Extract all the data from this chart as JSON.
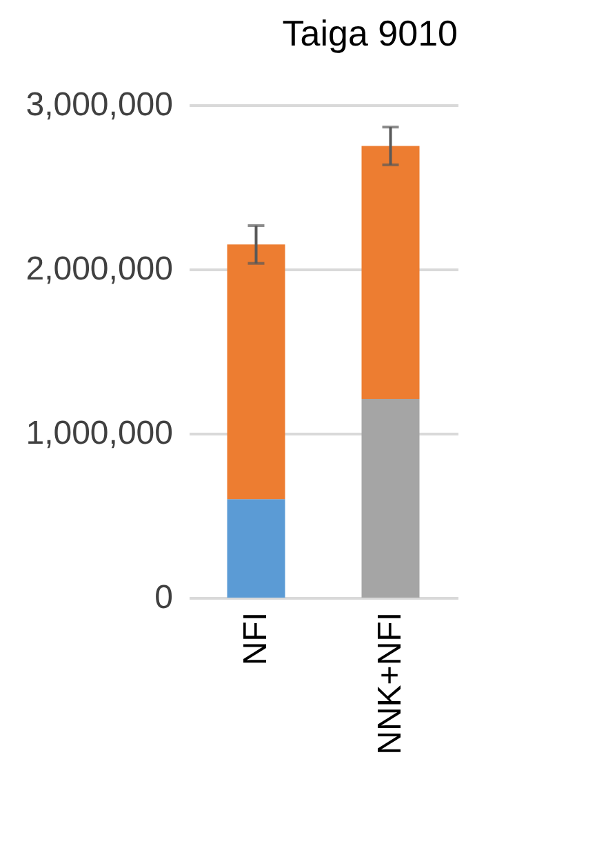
{
  "chart_data": {
    "type": "bar",
    "title": "Taiga 9010",
    "categories": [
      "NFI",
      "NNK+NFI"
    ],
    "stacked": true,
    "series": [
      {
        "colors": [
          "#5b9bd5",
          "#a5a5a5"
        ],
        "values": [
          600000,
          1210000
        ]
      },
      {
        "color": "#ed7d31",
        "values": [
          1550000,
          1540000
        ],
        "errors": [
          115000,
          115000
        ]
      }
    ],
    "ylim": [
      0,
      3000000
    ],
    "yticks": [
      {
        "value": 0,
        "label": "0"
      },
      {
        "value": 1000000,
        "label": "1,000,000"
      },
      {
        "value": 2000000,
        "label": "2,000,000"
      },
      {
        "value": 3000000,
        "label": "3,000,000"
      }
    ],
    "grid": "y",
    "legend": false
  }
}
